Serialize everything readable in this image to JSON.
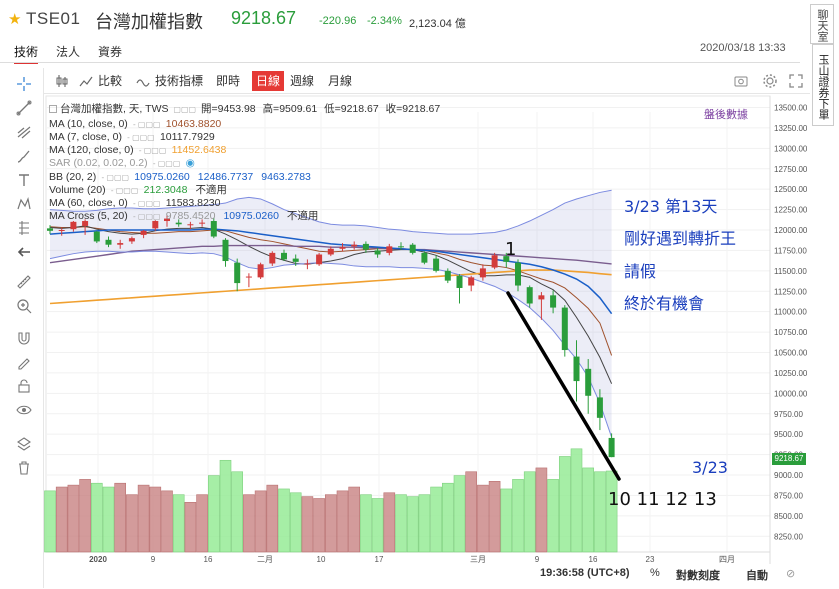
{
  "header": {
    "star_icon": "star-icon",
    "code": "TSE01",
    "name": "台灣加權指數",
    "price": "9218.67",
    "change": "-220.96",
    "change_pct": "-2.34%",
    "volume": "2,123.04 億",
    "datetime": "2020/03/18 13:33",
    "up_color": "#d33b3b",
    "down_color": "#2a9d3b"
  },
  "tabs": [
    {
      "label": "技術",
      "active": true
    },
    {
      "label": "法人",
      "active": false
    },
    {
      "label": "資券",
      "active": false
    }
  ],
  "side_tabs": {
    "chat": "聊天室",
    "broker": "玉山證券下單"
  },
  "toolbar": {
    "compare": "比較",
    "indicators": "技術指標",
    "intraday": "即時",
    "daily": "日線",
    "weekly": "週線",
    "monthly": "月線",
    "camera_icon": "camera-icon",
    "settings_icon": "gear-icon",
    "fullscreen_icon": "fullscreen-icon"
  },
  "legend": {
    "title": "台灣加權指數, 天, TWS",
    "open_label": "開=",
    "open": "9453.98",
    "high_label": "高=",
    "high": "9509.61",
    "low_label": "低=",
    "low": "9218.67",
    "close_label": "收=",
    "close": "9218.67",
    "rows": [
      {
        "name": "MA (10, close, 0)",
        "values": [
          "10463.8820"
        ],
        "colors": [
          "#a0522d"
        ]
      },
      {
        "name": "MA (7, close, 0)",
        "values": [
          "10117.7929"
        ],
        "colors": [
          "#333333"
        ]
      },
      {
        "name": "MA (120, close, 0)",
        "values": [
          "11452.6438"
        ],
        "colors": [
          "#f0a030"
        ]
      },
      {
        "name": "SAR (0.02, 0.02, 0.2)",
        "values": [],
        "colors": [],
        "faint": true
      },
      {
        "name": "BB (20, 2)",
        "values": [
          "10975.0260",
          "12486.7737",
          "9463.2783"
        ],
        "colors": [
          "#1a5fc8",
          "#1a5fc8",
          "#1a5fc8"
        ]
      },
      {
        "name": "Volume (20)",
        "values": [
          "212.3048",
          "不適用"
        ],
        "colors": [
          "#2a9d3b",
          "#333333"
        ]
      },
      {
        "name": "MA (60, close, 0)",
        "values": [
          "11583.8230"
        ],
        "colors": [
          "#333333"
        ]
      },
      {
        "name": "MA Cross (5, 20)",
        "values": [
          "9785.4520",
          "10975.0260",
          "不適用"
        ],
        "colors": [
          "#999999",
          "#1a5fc8",
          "#333333"
        ]
      }
    ],
    "event_label": "盤後數據"
  },
  "annotations": {
    "line1": "3/23 第13天",
    "line2": "剛好遇到轉折王",
    "line3": "請假",
    "line4": "終於有機會",
    "marker_1": "1",
    "date_label": "3/23",
    "days": "10 11 12 13"
  },
  "price_axis": {
    "labels": [
      "13500.00",
      "13250.00",
      "13000.00",
      "12750.00",
      "12500.00",
      "12250.00",
      "12000.00",
      "11750.00",
      "11500.00",
      "11250.00",
      "11000.00",
      "10750.00",
      "10500.00",
      "10250.00",
      "10000.00",
      "9750.00",
      "9500.00",
      "9250.00",
      "9000.00",
      "8750.00",
      "8500.00",
      "8250.00"
    ],
    "current": "9218.67"
  },
  "time_axis": {
    "labels": [
      "2020",
      "9",
      "16",
      "二月",
      "10",
      "17",
      "三月",
      "9",
      "16",
      "23",
      "四月"
    ]
  },
  "status": {
    "time": "19:36:58 (UTC+8)",
    "percent": "%",
    "log": "對數刻度",
    "auto": "自動"
  },
  "chart_data": {
    "type": "candlestick",
    "instrument": "台灣加權指數",
    "interval": "天",
    "y_range": [
      8150,
      13600
    ],
    "x": [
      "2019-12-30",
      "2019-12-31",
      "2020-01-02",
      "2020-01-03",
      "2020-01-06",
      "2020-01-07",
      "2020-01-08",
      "2020-01-09",
      "2020-01-10",
      "2020-01-13",
      "2020-01-14",
      "2020-01-15",
      "2020-01-16",
      "2020-01-17",
      "2020-01-20",
      "2020-01-30",
      "2020-01-31",
      "2020-02-03",
      "2020-02-04",
      "2020-02-05",
      "2020-02-06",
      "2020-02-07",
      "2020-02-10",
      "2020-02-11",
      "2020-02-12",
      "2020-02-13",
      "2020-02-14",
      "2020-02-17",
      "2020-02-18",
      "2020-02-19",
      "2020-02-20",
      "2020-02-21",
      "2020-02-24",
      "2020-02-25",
      "2020-02-26",
      "2020-02-27",
      "2020-03-02",
      "2020-03-03",
      "2020-03-04",
      "2020-03-05",
      "2020-03-06",
      "2020-03-09",
      "2020-03-10",
      "2020-03-11",
      "2020-03-12",
      "2020-03-13",
      "2020-03-16",
      "2020-03-17",
      "2020-03-18"
    ],
    "open": [
      12020,
      11990,
      12010,
      12050,
      11980,
      11880,
      11820,
      11860,
      11940,
      12020,
      12110,
      12090,
      12060,
      12080,
      12110,
      11880,
      11600,
      11430,
      11420,
      11590,
      11720,
      11650,
      11590,
      11580,
      11700,
      11770,
      11800,
      11830,
      11750,
      11720,
      11800,
      11820,
      11720,
      11650,
      11500,
      11440,
      11320,
      11420,
      11540,
      11680,
      11600,
      11300,
      11150,
      11200,
      11050,
      10450,
      10300,
      9950,
      9454
    ],
    "high": [
      12060,
      12030,
      12110,
      12130,
      11990,
      11920,
      11880,
      11920,
      12000,
      12120,
      12180,
      12130,
      12100,
      12130,
      12150,
      11900,
      11650,
      11470,
      11600,
      11740,
      11760,
      11700,
      11640,
      11720,
      11800,
      11840,
      11860,
      11860,
      11780,
      11830,
      11850,
      11840,
      11740,
      11690,
      11530,
      11460,
      11440,
      11580,
      11720,
      11720,
      11640,
      11320,
      11240,
      11260,
      11080,
      10650,
      10420,
      10050,
      9510
    ],
    "low": [
      11950,
      11930,
      11980,
      11940,
      11840,
      11790,
      11770,
      11830,
      11900,
      11990,
      12040,
      12040,
      12010,
      12040,
      11900,
      11550,
      11250,
      11300,
      11400,
      11560,
      11620,
      11560,
      11520,
      11560,
      11680,
      11740,
      11760,
      11720,
      11660,
      11690,
      11760,
      11700,
      11580,
      11480,
      11350,
      11100,
      11250,
      11380,
      11520,
      11540,
      11250,
      11050,
      10900,
      10980,
      10450,
      9900,
      9750,
      9550,
      9218
    ],
    "close": [
      11990,
      12000,
      12100,
      12110,
      11860,
      11820,
      11840,
      11900,
      11990,
      12110,
      12140,
      12070,
      12070,
      12090,
      11920,
      11620,
      11350,
      11430,
      11580,
      11720,
      11640,
      11610,
      11590,
      11700,
      11770,
      11790,
      11820,
      11760,
      11700,
      11800,
      11790,
      11720,
      11600,
      11500,
      11380,
      11290,
      11420,
      11530,
      11690,
      11610,
      11320,
      11100,
      11200,
      11050,
      10530,
      10150,
      9970,
      9700,
      9219
    ],
    "series": [
      {
        "name": "MA (10, close, 0)",
        "values": [
          12040,
          12030,
          12030,
          12040,
          12020,
          12000,
          11980,
          11970,
          11960,
          11960,
          11970,
          11980,
          11980,
          11990,
          12000,
          11990,
          11950,
          11910,
          11880,
          11860,
          11830,
          11800,
          11770,
          11740,
          11730,
          11740,
          11750,
          11760,
          11770,
          11770,
          11770,
          11760,
          11750,
          11720,
          11690,
          11640,
          11600,
          11570,
          11560,
          11540,
          11500,
          11450,
          11400,
          11360,
          11290,
          11170,
          11040,
          10860,
          10464
        ]
      },
      {
        "name": "MA (7, close, 0)",
        "values": [
          12030,
          12020,
          12030,
          12050,
          12010,
          11980,
          11960,
          11950,
          11960,
          11990,
          12010,
          12020,
          12020,
          12030,
          12010,
          11950,
          11880,
          11800,
          11730,
          11670,
          11630,
          11590,
          11580,
          11600,
          11620,
          11650,
          11700,
          11730,
          11740,
          11750,
          11760,
          11760,
          11730,
          11690,
          11630,
          11560,
          11490,
          11440,
          11440,
          11450,
          11450,
          11420,
          11340,
          11270,
          11140,
          10930,
          10700,
          10440,
          10118
        ]
      },
      {
        "name": "MA (120, close, 0)",
        "values": [
          11100,
          11110,
          11120,
          11130,
          11140,
          11150,
          11160,
          11170,
          11180,
          11190,
          11200,
          11210,
          11220,
          11230,
          11240,
          11250,
          11260,
          11270,
          11280,
          11290,
          11300,
          11310,
          11320,
          11330,
          11340,
          11350,
          11360,
          11370,
          11380,
          11390,
          11400,
          11410,
          11420,
          11430,
          11440,
          11450,
          11460,
          11470,
          11480,
          11490,
          11500,
          11510,
          11510,
          11510,
          11500,
          11490,
          11480,
          11465,
          11453
        ]
      },
      {
        "name": "MA (60, close, 0)",
        "values": [
          11600,
          11620,
          11640,
          11660,
          11680,
          11700,
          11720,
          11740,
          11750,
          11760,
          11770,
          11780,
          11790,
          11800,
          11800,
          11810,
          11810,
          11810,
          11810,
          11810,
          11810,
          11800,
          11800,
          11800,
          11790,
          11790,
          11790,
          11780,
          11780,
          11770,
          11770,
          11760,
          11760,
          11750,
          11740,
          11730,
          11720,
          11710,
          11700,
          11690,
          11680,
          11670,
          11660,
          11650,
          11640,
          11630,
          11615,
          11600,
          11584
        ]
      },
      {
        "name": "BB middle (20, 2)",
        "values": [
          11950,
          11960,
          11970,
          11980,
          11990,
          12000,
          12000,
          12000,
          12000,
          12000,
          12000,
          12000,
          12000,
          12010,
          12010,
          12000,
          11990,
          11970,
          11950,
          11930,
          11910,
          11890,
          11870,
          11850,
          11830,
          11820,
          11810,
          11800,
          11790,
          11780,
          11770,
          11760,
          11750,
          11740,
          11720,
          11700,
          11680,
          11660,
          11640,
          11620,
          11600,
          11580,
          11550,
          11510,
          11460,
          11400,
          11310,
          11170,
          10975
        ]
      },
      {
        "name": "BB upper (20, 2)",
        "values": [
          12250,
          12240,
          12230,
          12230,
          12240,
          12260,
          12270,
          12270,
          12260,
          12260,
          12270,
          12280,
          12290,
          12300,
          12310,
          12330,
          12380,
          12400,
          12380,
          12320,
          12250,
          12200,
          12150,
          12100,
          12070,
          12060,
          12060,
          12050,
          12030,
          12010,
          12000,
          11980,
          11970,
          11960,
          11950,
          11950,
          11950,
          11960,
          11970,
          12000,
          12050,
          12110,
          12180,
          12250,
          12330,
          12380,
          12420,
          12460,
          12487
        ]
      },
      {
        "name": "BB lower (20, 2)",
        "values": [
          11650,
          11680,
          11710,
          11730,
          11740,
          11740,
          11730,
          11730,
          11740,
          11740,
          11730,
          11720,
          11710,
          11720,
          11710,
          11670,
          11600,
          11540,
          11520,
          11540,
          11570,
          11580,
          11590,
          11600,
          11590,
          11580,
          11560,
          11550,
          11550,
          11550,
          11540,
          11540,
          11530,
          11520,
          11490,
          11450,
          11410,
          11360,
          11310,
          11240,
          11150,
          11050,
          10920,
          10770,
          10590,
          10420,
          10200,
          9880,
          9463
        ]
      }
    ],
    "volume": [
      160,
      170,
      175,
      190,
      180,
      170,
      180,
      150,
      175,
      170,
      160,
      150,
      130,
      150,
      200,
      240,
      210,
      150,
      160,
      175,
      165,
      155,
      145,
      140,
      150,
      160,
      170,
      150,
      140,
      155,
      150,
      145,
      150,
      170,
      180,
      200,
      210,
      175,
      185,
      165,
      190,
      210,
      220,
      190,
      250,
      270,
      220,
      210,
      212
    ],
    "annotations": [
      "3/23 第13天",
      "剛好遇到轉折王",
      "請假",
      "終於有機會"
    ]
  }
}
